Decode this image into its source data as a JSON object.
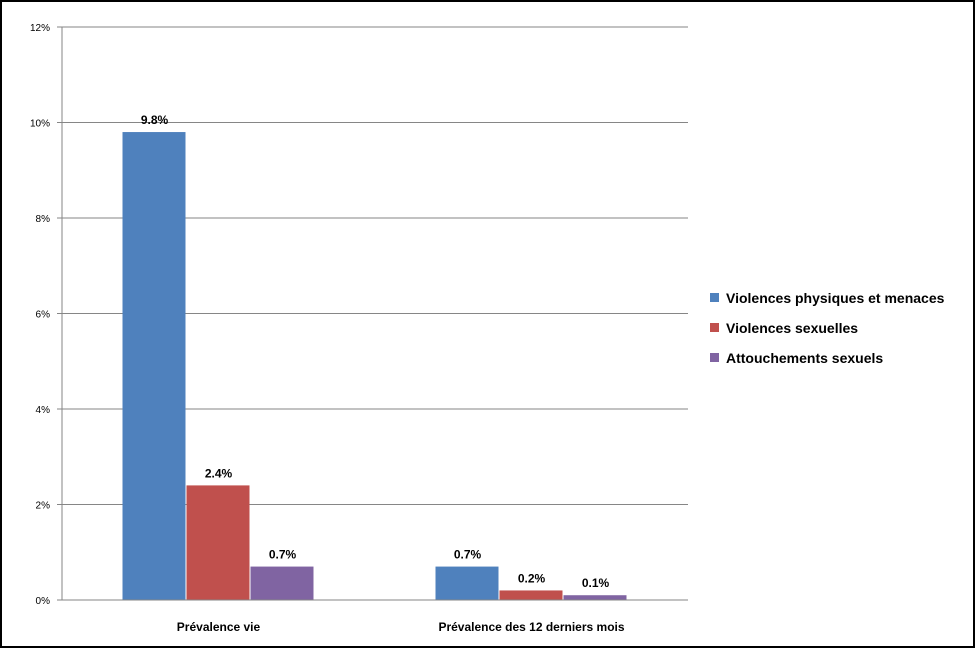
{
  "chart_data": {
    "type": "bar",
    "categories": [
      "Prévalence vie",
      "Prévalence des 12 derniers mois"
    ],
    "series": [
      {
        "name": "Violences physiques et menaces",
        "values": [
          9.8,
          0.7
        ],
        "labels": [
          "9.8%",
          "0.7%"
        ],
        "color": "#4F81BD"
      },
      {
        "name": "Violences sexuelles",
        "values": [
          2.4,
          0.2
        ],
        "labels": [
          "2.4%",
          "0.2%"
        ],
        "color": "#C0504D"
      },
      {
        "name": "Attouchements sexuels",
        "values": [
          0.7,
          0.1
        ],
        "labels": [
          "0.7%",
          "0.1%"
        ],
        "color": "#8064A2"
      }
    ],
    "ylim": [
      0,
      12
    ],
    "yticks": [
      0,
      2,
      4,
      6,
      8,
      10,
      12
    ],
    "ytick_labels": [
      "0%",
      "2%",
      "4%",
      "6%",
      "8%",
      "10%",
      "12%"
    ],
    "grid": true,
    "legend_position": "right",
    "gridline_color": "#868686"
  }
}
